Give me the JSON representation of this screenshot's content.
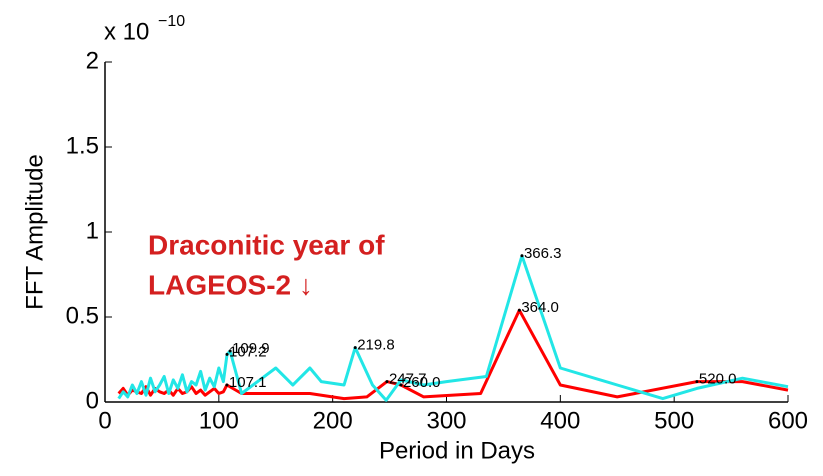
{
  "chart_data": {
    "type": "line",
    "y_multiplier": "x 10",
    "y_exponent": "−10",
    "xlabel": "Period in Days",
    "ylabel": "FFT Amplitude",
    "xlim": [
      0,
      600
    ],
    "xticks": [
      0,
      100,
      200,
      300,
      400,
      500,
      600
    ],
    "ylim": [
      0,
      2
    ],
    "yticks": [
      0,
      0.5,
      1,
      1.5,
      2
    ],
    "series": [
      {
        "color": "#ff0000",
        "x": [
          12,
          16,
          20,
          24,
          28,
          32,
          36,
          40,
          44,
          48,
          52,
          56,
          60,
          64,
          68,
          72,
          76,
          80,
          84,
          88,
          92,
          96,
          100,
          104,
          107.1,
          120,
          150,
          180,
          210,
          230,
          247.7,
          260,
          280,
          330,
          364,
          400,
          450,
          520,
          560,
          600
        ],
        "values": [
          0.05,
          0.08,
          0.04,
          0.07,
          0.06,
          0.05,
          0.09,
          0.04,
          0.08,
          0.06,
          0.05,
          0.07,
          0.04,
          0.08,
          0.05,
          0.06,
          0.09,
          0.05,
          0.07,
          0.04,
          0.06,
          0.08,
          0.05,
          0.06,
          0.1,
          0.05,
          0.05,
          0.05,
          0.02,
          0.03,
          0.12,
          0.1,
          0.03,
          0.05,
          0.54,
          0.1,
          0.03,
          0.12,
          0.12,
          0.07
        ]
      },
      {
        "color": "#22e6e6",
        "x": [
          12,
          16,
          20,
          24,
          28,
          32,
          36,
          40,
          44,
          48,
          52,
          56,
          60,
          64,
          68,
          72,
          76,
          80,
          84,
          88,
          92,
          96,
          100,
          104,
          107.2,
          109.9,
          120,
          130,
          150,
          165,
          180,
          190,
          210,
          219.8,
          235,
          247,
          260,
          280,
          300,
          335,
          366.3,
          400,
          450,
          490,
          520,
          560,
          600
        ],
        "values": [
          0.02,
          0.06,
          0.03,
          0.1,
          0.05,
          0.12,
          0.04,
          0.14,
          0.06,
          0.1,
          0.15,
          0.05,
          0.13,
          0.08,
          0.16,
          0.06,
          0.12,
          0.1,
          0.18,
          0.07,
          0.14,
          0.09,
          0.2,
          0.12,
          0.28,
          0.3,
          0.05,
          0.1,
          0.2,
          0.1,
          0.2,
          0.12,
          0.1,
          0.32,
          0.1,
          0.01,
          0.13,
          0.1,
          0.12,
          0.15,
          0.86,
          0.2,
          0.1,
          0.02,
          0.08,
          0.14,
          0.09
        ]
      }
    ],
    "point_labels": [
      {
        "text": "109.9",
        "x": 109.9,
        "y": 0.3
      },
      {
        "text": "107.2",
        "x": 107.2,
        "y": 0.28
      },
      {
        "text": "107.1",
        "x": 107.1,
        "y": 0.1
      },
      {
        "text": "219.8",
        "x": 219.8,
        "y": 0.32
      },
      {
        "text": "247.7",
        "x": 247.7,
        "y": 0.12
      },
      {
        "text": "260.0",
        "x": 260,
        "y": 0.1
      },
      {
        "text": "366.3",
        "x": 366.3,
        "y": 0.86
      },
      {
        "text": "364.0",
        "x": 364,
        "y": 0.54
      },
      {
        "text": "520.0",
        "x": 520,
        "y": 0.12
      }
    ],
    "annotation": [
      "Draconitic year of",
      "LAGEOS-2 ↓"
    ]
  }
}
